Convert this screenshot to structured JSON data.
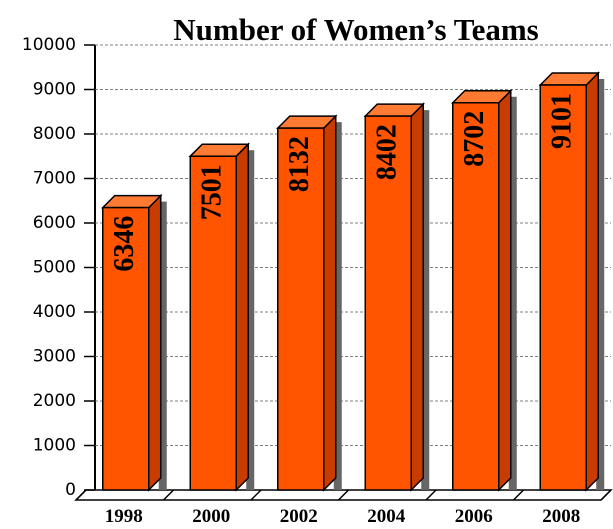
{
  "chart_data": {
    "type": "bar",
    "title": "Number of Women’s Teams",
    "categories": [
      "1998",
      "2000",
      "2002",
      "2004",
      "2006",
      "2008"
    ],
    "values": [
      6346,
      7501,
      8132,
      8402,
      8702,
      9101
    ],
    "color": "#ff5500",
    "ylim": [
      0,
      10000
    ],
    "yticks": [
      0,
      1000,
      2000,
      3000,
      4000,
      5000,
      6000,
      7000,
      8000,
      9000,
      10000
    ],
    "grid": true
  }
}
